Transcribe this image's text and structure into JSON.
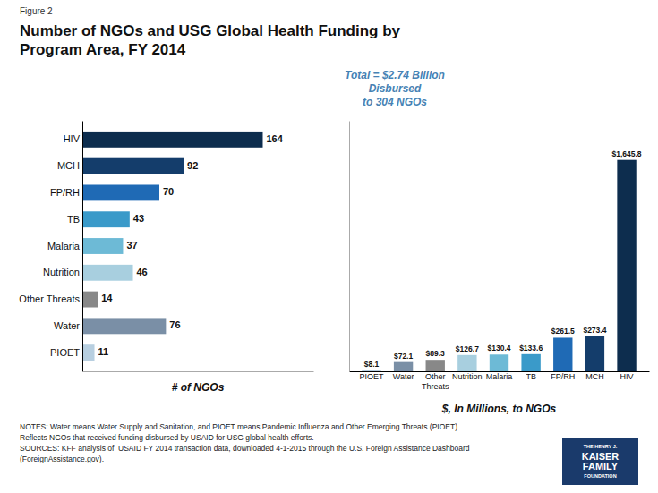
{
  "chart_data": [
    {
      "type": "bar",
      "orientation": "horizontal",
      "title": "Number of NGOs and USG Global Health Funding by\nProgram Area, FY 2014",
      "annotations": [
        "Figure 2",
        "Total = $2.74 Billion\nDisbursed\nto 304 NGOs",
        "NOTES: Water means Water Supply and Sanitation, and PIOET means Pandemic Influenza and Other Emerging Threats (PIOET).",
        "Reflects NGOs that received funding disbursed by USAID for USG global health efforts.",
        "SOURCES: KFF analysis of  USAID FY 2014 transaction data, downloaded 4-1-2015 through the U.S. Foreign Assistance Dashboard",
        "(ForeignAssistance.gov).",
        "THE HENRY J.",
        "KAISER",
        "FAMILY",
        "FOUNDATION"
      ],
      "categories": [
        "HIV",
        "MCH",
        "FP/RH",
        "TB",
        "Malaria",
        "Nutrition",
        "Other Threats",
        "Water",
        "PIOET"
      ],
      "values": [
        164,
        92,
        70,
        43,
        37,
        46,
        14,
        76,
        11
      ],
      "colors": [
        "#0d2d4e",
        "#143d6b",
        "#1f6ab5",
        "#3a9ac9",
        "#6dbad6",
        "#a8cfdf",
        "#888888",
        "#7a8fa6",
        "#b8cfe0"
      ],
      "xlabel": "# of NGOs",
      "xlim": [
        0,
        210
      ],
      "data_labels": true,
      "tick_labels": "y"
    },
    {
      "type": "bar",
      "categories": [
        "PIOET",
        "Water",
        "Other\nThreats",
        "Nutrition",
        "Malaria",
        "TB",
        "FP/RH",
        "MCH",
        "HIV"
      ],
      "values": [
        8.1,
        72.1,
        89.3,
        126.7,
        130.4,
        133.6,
        261.5,
        273.4,
        1645.8
      ],
      "value_labels": [
        "$8.1",
        "$72.1",
        "$89.3",
        "$126.7",
        "$130.4",
        "$133.6",
        "$261.5",
        "$273.4",
        "$1,645.8"
      ],
      "colors": [
        "#b8cfe0",
        "#7a8fa6",
        "#888888",
        "#a8cfdf",
        "#6dbad6",
        "#3a9ac9",
        "#1f6ab5",
        "#143d6b",
        "#0d2d4e"
      ],
      "xlabel": "$, In Millions, to NGOs",
      "ylim": [
        0,
        1950
      ],
      "data_labels": true,
      "tick_labels": "x"
    }
  ]
}
